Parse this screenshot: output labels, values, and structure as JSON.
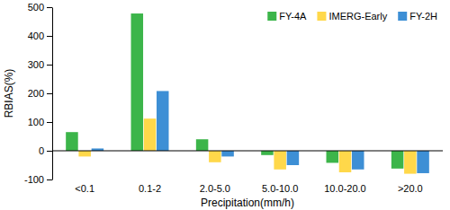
{
  "chart_data": {
    "type": "bar",
    "x_label": "Precipitation(mm/h)",
    "y_label": "RBIAS(%)",
    "categories": [
      "<0.1",
      "0.1-2",
      "2.0-5.0",
      "5.0-10.0",
      "10.0-20.0",
      ">20.0"
    ],
    "series": [
      {
        "name": "FY-4A",
        "color": "#3cb54a",
        "values": [
          65,
          478,
          40,
          -15,
          -42,
          -62
        ]
      },
      {
        "name": "IMERG-Early",
        "color": "#ffd84a",
        "values": [
          -20,
          112,
          -40,
          -65,
          -75,
          -80
        ]
      },
      {
        "name": "FY-2H",
        "color": "#3d8fd5",
        "values": [
          8,
          208,
          -20,
          -50,
          -65,
          -78
        ]
      }
    ],
    "ylim": [
      -100,
      500
    ],
    "yticks": [
      -100,
      0,
      100,
      200,
      300,
      400,
      500
    ],
    "legend": "upper right",
    "grid": false
  }
}
